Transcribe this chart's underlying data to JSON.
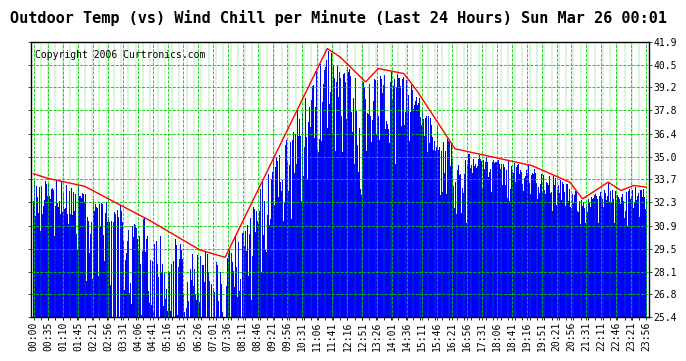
{
  "title": "Outdoor Temp (vs) Wind Chill per Minute (Last 24 Hours) Sun Mar 26 00:01",
  "copyright": "Copyright 2006 Curtronics.com",
  "ylabel_right_ticks": [
    41.9,
    40.5,
    39.2,
    37.8,
    36.4,
    35.0,
    33.7,
    32.3,
    30.9,
    29.5,
    28.1,
    26.8,
    25.4
  ],
  "ylim": [
    25.4,
    41.9
  ],
  "bg_color": "#ffffff",
  "plot_bg_color": "#ffffff",
  "grid_color": "#00cc00",
  "bar_color": "#0000ff",
  "line_color": "#ff0000",
  "title_fontsize": 11,
  "copyright_fontsize": 7,
  "tick_fontsize": 7,
  "x_tick_labels": [
    "00:00",
    "00:35",
    "01:10",
    "01:45",
    "02:21",
    "02:56",
    "03:31",
    "04:06",
    "04:41",
    "05:16",
    "05:51",
    "06:26",
    "07:01",
    "07:36",
    "08:11",
    "08:46",
    "09:21",
    "09:56",
    "10:31",
    "11:06",
    "11:41",
    "12:16",
    "12:51",
    "13:26",
    "14:01",
    "14:36",
    "15:11",
    "15:46",
    "16:21",
    "16:56",
    "17:31",
    "18:06",
    "18:41",
    "19:16",
    "19:51",
    "20:21",
    "20:56",
    "21:31",
    "22:11",
    "22:46",
    "23:21",
    "23:56"
  ],
  "n_minutes": 1440
}
